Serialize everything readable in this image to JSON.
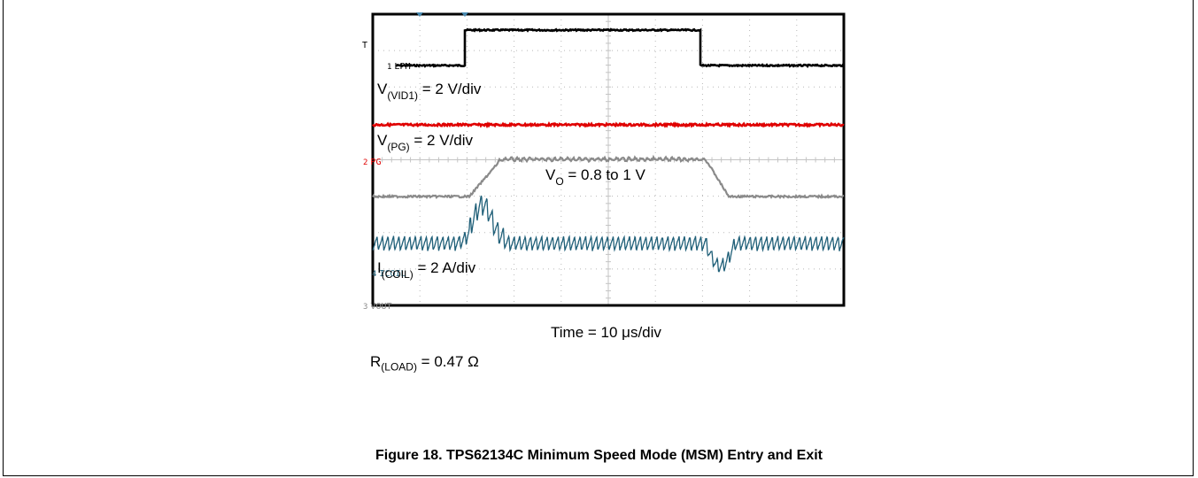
{
  "chart_data": {
    "type": "line",
    "title": "Figure 18. TPS62134C Minimum Speed Mode (MSM) Entry and Exit",
    "xlabel": "Time = 10 μs/div",
    "note": {
      "base": "R",
      "sub": "(LOAD)",
      "rest": " = 0.47 Ω"
    },
    "trigger_marker": "T",
    "series": [
      {
        "name": "LPM",
        "channel": "1",
        "color": "#000000",
        "annotation": {
          "base": "V",
          "sub": "(VID1)",
          "rest": " = 2 V/div"
        }
      },
      {
        "name": "PG",
        "channel": "2",
        "color": "#e00000",
        "annotation": {
          "base": "V",
          "sub": "(PG)",
          "rest": " = 2 V/div"
        }
      },
      {
        "name": "VOUT",
        "channel": "3",
        "color": "#8a8a8a",
        "annotation": {
          "base": "V",
          "sub": "O",
          "rest": " = 0.8 to 1 V"
        }
      },
      {
        "name": "ICOIL",
        "channel": "4",
        "color": "#1f5f78",
        "annotation": {
          "base": "I",
          "sub": "(COIL)",
          "rest": " = 2 A/div"
        }
      }
    ]
  }
}
